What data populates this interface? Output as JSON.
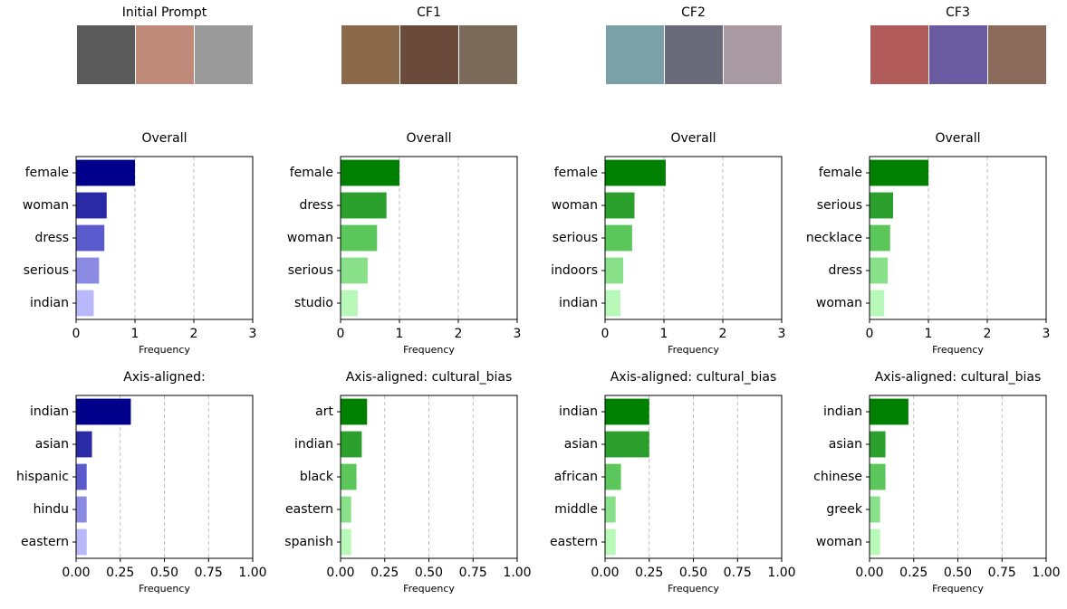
{
  "columns": [
    "Initial Prompt",
    "CF1",
    "CF2",
    "CF3"
  ],
  "chart_data": [
    {
      "type": "barh",
      "title": "Overall",
      "xlabel": "Frequency",
      "categories": [
        "female",
        "woman",
        "dress",
        "serious",
        "indian"
      ],
      "values": [
        1.0,
        0.52,
        0.48,
        0.39,
        0.3
      ],
      "colors": [
        "#00008b",
        "#2a2aa6",
        "#5a5acc",
        "#8a8ae2",
        "#b8b8fa"
      ],
      "xlim": [
        0,
        3
      ],
      "xticks": [
        0,
        1,
        2,
        3
      ],
      "grid": true
    },
    {
      "type": "barh",
      "title": "Overall",
      "xlabel": "Frequency",
      "categories": [
        "female",
        "dress",
        "woman",
        "serious",
        "studio"
      ],
      "values": [
        1.0,
        0.78,
        0.62,
        0.46,
        0.29
      ],
      "colors": [
        "#008000",
        "#2ca02c",
        "#5cc85c",
        "#88e088",
        "#b8f8b8"
      ],
      "xlim": [
        0,
        3
      ],
      "xticks": [
        0,
        1,
        2,
        3
      ],
      "grid": true
    },
    {
      "type": "barh",
      "title": "Overall",
      "xlabel": "Frequency",
      "categories": [
        "female",
        "woman",
        "serious",
        "indoors",
        "indian"
      ],
      "values": [
        1.03,
        0.5,
        0.46,
        0.31,
        0.26
      ],
      "colors": [
        "#008000",
        "#2ca02c",
        "#5cc85c",
        "#88e088",
        "#b8f8b8"
      ],
      "xlim": [
        0,
        3
      ],
      "xticks": [
        0,
        1,
        2,
        3
      ],
      "grid": true
    },
    {
      "type": "barh",
      "title": "Overall",
      "xlabel": "Frequency",
      "categories": [
        "female",
        "serious",
        "necklace",
        "dress",
        "woman"
      ],
      "values": [
        1.0,
        0.4,
        0.35,
        0.31,
        0.25
      ],
      "colors": [
        "#008000",
        "#2ca02c",
        "#5cc85c",
        "#88e088",
        "#b8f8b8"
      ],
      "xlim": [
        0,
        3
      ],
      "xticks": [
        0,
        1,
        2,
        3
      ],
      "grid": true
    },
    {
      "type": "barh",
      "title": "Axis-aligned:",
      "xlabel": "Frequency",
      "categories": [
        "indian",
        "asian",
        "hispanic",
        "hindu",
        "eastern"
      ],
      "values": [
        0.31,
        0.09,
        0.06,
        0.06,
        0.06
      ],
      "colors": [
        "#00008b",
        "#2a2aa6",
        "#5a5acc",
        "#8a8ae2",
        "#b8b8fa"
      ],
      "xlim": [
        0,
        1
      ],
      "xticks": [
        {
          "value": 0,
          "label": "0.00"
        },
        {
          "value": 0.25,
          "label": "0.25"
        },
        {
          "value": 0.5,
          "label": "0.50"
        },
        {
          "value": 0.75,
          "label": "0.75"
        },
        {
          "value": 1,
          "label": "1.00"
        }
      ],
      "grid": true
    },
    {
      "type": "barh",
      "title": "Axis-aligned: cultural_bias",
      "xlabel": "Frequency",
      "categories": [
        "art",
        "indian",
        "black",
        "eastern",
        "spanish"
      ],
      "values": [
        0.15,
        0.12,
        0.09,
        0.06,
        0.06
      ],
      "colors": [
        "#008000",
        "#2ca02c",
        "#5cc85c",
        "#88e088",
        "#b8f8b8"
      ],
      "xlim": [
        0,
        1
      ],
      "xticks": [
        {
          "value": 0,
          "label": "0.00"
        },
        {
          "value": 0.25,
          "label": "0.25"
        },
        {
          "value": 0.5,
          "label": "0.50"
        },
        {
          "value": 0.75,
          "label": "0.75"
        },
        {
          "value": 1,
          "label": "1.00"
        }
      ],
      "grid": true
    },
    {
      "type": "barh",
      "title": "Axis-aligned: cultural_bias",
      "xlabel": "Frequency",
      "categories": [
        "indian",
        "asian",
        "african",
        "middle",
        "eastern"
      ],
      "values": [
        0.25,
        0.25,
        0.09,
        0.06,
        0.06
      ],
      "colors": [
        "#008000",
        "#2ca02c",
        "#5cc85c",
        "#88e088",
        "#b8f8b8"
      ],
      "xlim": [
        0,
        1
      ],
      "xticks": [
        {
          "value": 0,
          "label": "0.00"
        },
        {
          "value": 0.25,
          "label": "0.25"
        },
        {
          "value": 0.5,
          "label": "0.50"
        },
        {
          "value": 0.75,
          "label": "0.75"
        },
        {
          "value": 1,
          "label": "1.00"
        }
      ],
      "grid": true
    },
    {
      "type": "barh",
      "title": "Axis-aligned: cultural_bias",
      "xlabel": "Frequency",
      "categories": [
        "indian",
        "asian",
        "chinese",
        "greek",
        "woman"
      ],
      "values": [
        0.22,
        0.09,
        0.09,
        0.06,
        0.06
      ],
      "colors": [
        "#008000",
        "#2ca02c",
        "#5cc85c",
        "#88e088",
        "#b8f8b8"
      ],
      "xlim": [
        0,
        1
      ],
      "xticks": [
        {
          "value": 0,
          "label": "0.00"
        },
        {
          "value": 0.25,
          "label": "0.25"
        },
        {
          "value": 0.5,
          "label": "0.50"
        },
        {
          "value": 0.75,
          "label": "0.75"
        },
        {
          "value": 1,
          "label": "1.00"
        }
      ],
      "grid": true
    }
  ]
}
